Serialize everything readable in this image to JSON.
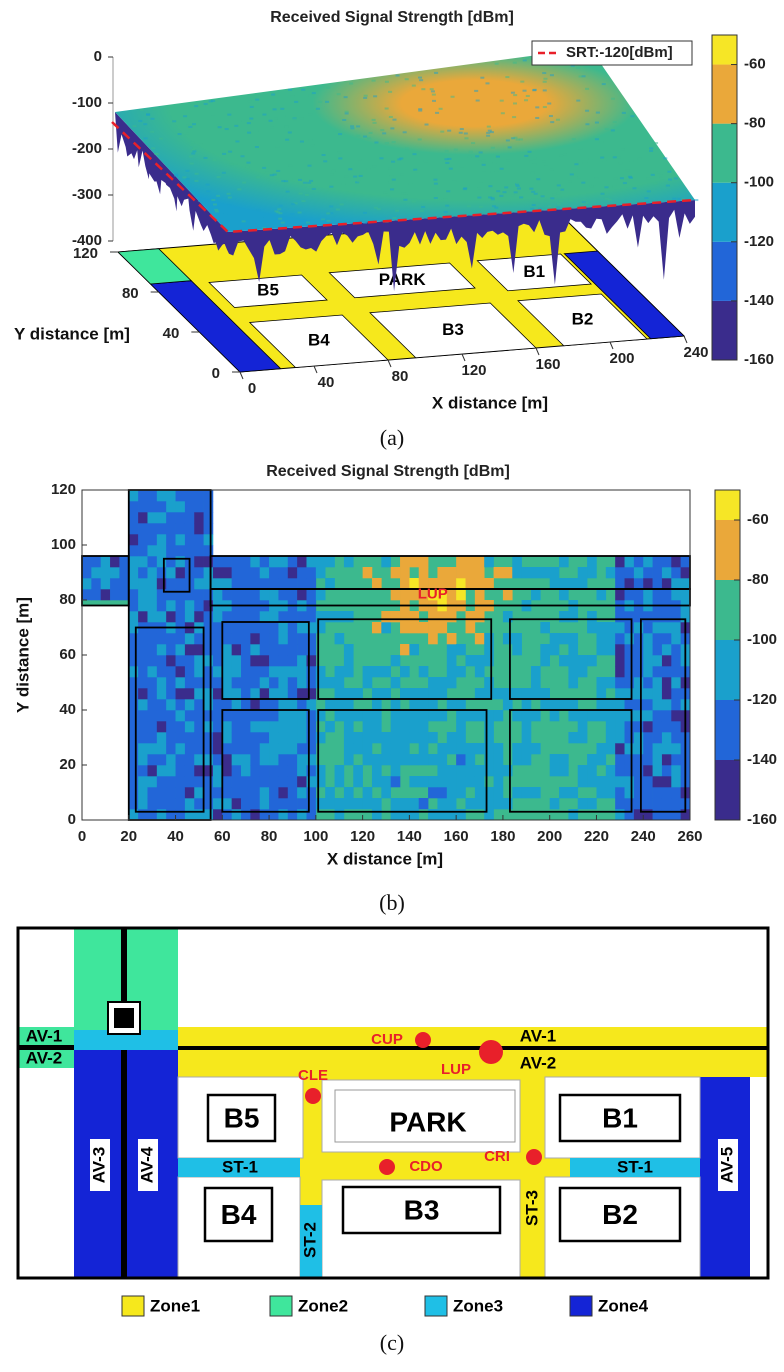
{
  "chart_data": [
    {
      "type": "surface",
      "title": "Received Signal Strength [dBm]",
      "xlabel": "X distance [m]",
      "ylabel": "Y distance [m]",
      "legend": "SRT:-120[dBm]",
      "legend_color": "#e8202a",
      "xlim": [
        0,
        240
      ],
      "ylim": [
        0,
        120
      ],
      "zlim": [
        -400,
        0
      ],
      "xticks": [
        0,
        40,
        80,
        120,
        160,
        200,
        240
      ],
      "yticks": [
        0,
        40,
        80,
        120
      ],
      "zticks": [
        0,
        -100,
        -200,
        -300,
        -400
      ],
      "colorbar": {
        "clim": [
          -160,
          -50
        ],
        "ticks": [
          -60,
          -80,
          -100,
          -120,
          -140,
          -160
        ],
        "levels": [
          -160,
          -140,
          -120,
          -100,
          -80,
          -60,
          -50
        ],
        "colors": [
          "#3a2c8c",
          "#2266d8",
          "#1aa0cc",
          "#3cb98e",
          "#eaa83a",
          "#f6e626"
        ]
      },
      "caption": "(a)"
    },
    {
      "type": "contour",
      "title": "Received Signal Strength [dBm]",
      "xlabel": "X distance [m]",
      "ylabel": "Y distance [m]",
      "annotation": "LUP",
      "annotation_color": "#e8202a",
      "xlim": [
        0,
        260
      ],
      "ylim": [
        0,
        120
      ],
      "xticks": [
        0,
        20,
        40,
        60,
        80,
        100,
        120,
        140,
        160,
        180,
        200,
        220,
        240,
        260
      ],
      "yticks": [
        0,
        20,
        40,
        60,
        80,
        100,
        120
      ],
      "colorbar": {
        "clim": [
          -160,
          -50
        ],
        "ticks": [
          -60,
          -80,
          -100,
          -120,
          -140,
          -160
        ],
        "levels": [
          -160,
          -140,
          -120,
          -100,
          -80,
          -60,
          -50
        ],
        "colors": [
          "#3a2c8c",
          "#2266d8",
          "#1aa0cc",
          "#3cb98e",
          "#eaa83a",
          "#f6e626"
        ]
      },
      "caption": "(b)"
    }
  ],
  "map": {
    "streets": [
      "AV-1",
      "AV-2",
      "AV-3",
      "AV-4",
      "AV-5",
      "ST-1",
      "ST-2",
      "ST-3"
    ],
    "blocks": [
      "B1",
      "B2",
      "B3",
      "B4",
      "B5",
      "PARK"
    ],
    "points": [
      "CUP",
      "LUP",
      "CLE",
      "CRI",
      "CDO"
    ],
    "point_color": "#e8202a",
    "legend": [
      {
        "name": "Zone1",
        "color": "#f6e81c"
      },
      {
        "name": "Zone2",
        "color": "#3fe69c"
      },
      {
        "name": "Zone3",
        "color": "#1fbfe6"
      },
      {
        "name": "Zone4",
        "color": "#1424d6"
      }
    ],
    "caption": "(c)"
  }
}
